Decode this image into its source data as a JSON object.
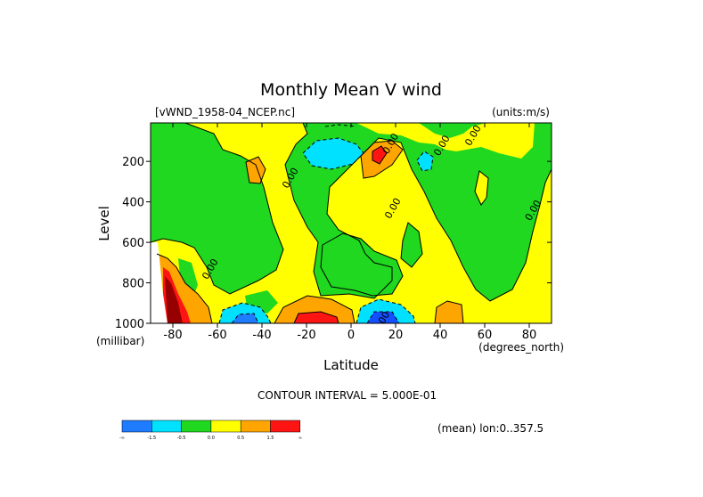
{
  "chart_data": {
    "type": "contour",
    "title": "Monthly Mean V wind",
    "dataset_label": "[vWND_1958-04_NCEP.nc]",
    "units_label": "(units:m/s)",
    "xlabel": "Latitude",
    "xunits": "(degrees_north)",
    "ylabel": "Level",
    "yunits": "(millibar)",
    "x_ticks": [
      -80,
      -60,
      -40,
      -20,
      0,
      20,
      40,
      60,
      80
    ],
    "x_tick_labels": [
      "-80",
      "-60",
      "-40",
      "-20",
      "0",
      "20",
      "40",
      "60",
      "80"
    ],
    "xlim": [
      -90,
      90
    ],
    "y_ticks": [
      200,
      400,
      600,
      800,
      1000
    ],
    "y_tick_labels": [
      "200",
      "400",
      "600",
      "800",
      "1000"
    ],
    "ylim": [
      1000,
      10
    ],
    "contour_interval_text": "CONTOUR INTERVAL = 5.000E-01",
    "mean_text": "(mean) lon:0..357.5",
    "contour_labels": [
      {
        "text": "0.00",
        "lat": 15,
        "level": 1000
      },
      {
        "text": "0.00",
        "lat": -26,
        "level": 290
      },
      {
        "text": "0.00",
        "lat": 19,
        "level": 120
      },
      {
        "text": "0.00",
        "lat": 56,
        "level": 80
      },
      {
        "text": "0.00",
        "lat": 42,
        "level": 130
      },
      {
        "text": "0.00",
        "lat": 20,
        "level": 440
      },
      {
        "text": "0.00",
        "lat": 83,
        "level": 450
      },
      {
        "text": "0.00",
        "lat": -62,
        "level": 740
      }
    ],
    "colorbar": {
      "ticks": [
        "-∞",
        "-1.5",
        "-0.5",
        "0.0",
        "0.5",
        "1.5",
        "∞"
      ],
      "colors": [
        "#1f7bff",
        "#00e0ff",
        "#1fd81f",
        "#ffff00",
        "#ffa500",
        "#ff1414"
      ],
      "mapping": "six filled bins between the tick labels, one color each"
    },
    "colors": {
      "strong_negative": "#1450ff",
      "negative": "#00e0ff",
      "weak_negative": "#1fd81f",
      "weak_positive": "#ffff00",
      "positive": "#ffa500",
      "strong_positive": "#ff1414",
      "dark_red": "#960000"
    }
  }
}
